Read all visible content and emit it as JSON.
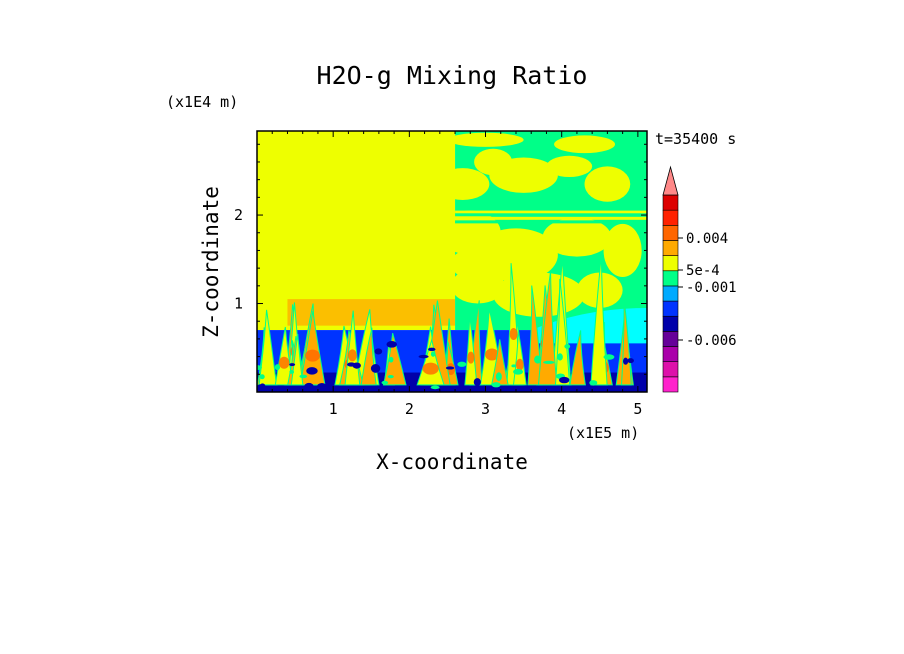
{
  "chart_data": {
    "type": "heatmap",
    "title": "H2O-g Mixing Ratio",
    "xlabel": "X-coordinate",
    "ylabel": "Z-coordinate",
    "x_unit": "(x1E5 m)",
    "y_unit": "(x1E4 m)",
    "time_label": "t=35400 s",
    "xlim": [
      0,
      5.12
    ],
    "ylim": [
      0,
      2.95
    ],
    "x_ticks": [
      "1",
      "2",
      "3",
      "4",
      "5"
    ],
    "x_tick_values": [
      1,
      2,
      3,
      4,
      5
    ],
    "y_ticks": [
      "1",
      "2"
    ],
    "y_tick_values": [
      1,
      2
    ],
    "colorbar": {
      "colors": [
        "#ff22cc",
        "#dd11aa",
        "#aa00aa",
        "#660099",
        "#0000aa",
        "#0033ff",
        "#00aaff",
        "#00ff88",
        "#eeff00",
        "#ffaa00",
        "#ff6600",
        "#ff2200",
        "#dd0000",
        "#ff8888"
      ],
      "extend": "max",
      "labels": [
        "0.004",
        "5e-4",
        "-0.001",
        "-0.006"
      ],
      "label_levels": [
        0.004,
        0.0005,
        -0.001,
        -0.006
      ]
    },
    "regions": [
      {
        "name": "background upper left",
        "x": [
          0,
          2.6
        ],
        "z": [
          0.7,
          2.95
        ],
        "color": "#eeff00"
      },
      {
        "name": "background upper right",
        "x": [
          2.6,
          5.12
        ],
        "z": [
          0.7,
          2.95
        ],
        "color": "#00ff88"
      },
      {
        "name": "boundary layer",
        "x": [
          0,
          5.12
        ],
        "z": [
          0,
          0.7
        ],
        "color": "#0033ff"
      }
    ]
  },
  "colors": {
    "low_layer": "#0033ff",
    "deep_blue": "#0000aa",
    "cyan": "#00ffff",
    "green": "#00ff88",
    "yellow": "#eeff00",
    "orange": "#ffaa00",
    "dark_orange": "#ff6600"
  }
}
